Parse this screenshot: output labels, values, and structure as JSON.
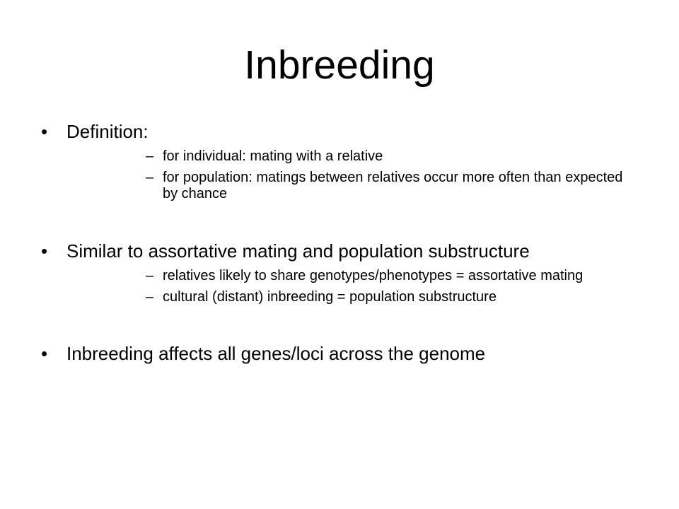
{
  "slide": {
    "title": "Inbreeding",
    "bullet_glyph": "•",
    "dash_glyph": "–",
    "bullets": [
      {
        "text": "Definition:",
        "sub": [
          "for individual:  mating with a relative",
          "for population:  matings between relatives occur more often than expected by chance"
        ]
      },
      {
        "text": "Similar to assortative mating and population substructure",
        "sub": [
          "relatives likely to share genotypes/phenotypes = assortative mating",
          "cultural (distant) inbreeding = population substructure"
        ]
      },
      {
        "text": "Inbreeding affects all genes/loci across the genome",
        "sub": []
      }
    ]
  }
}
